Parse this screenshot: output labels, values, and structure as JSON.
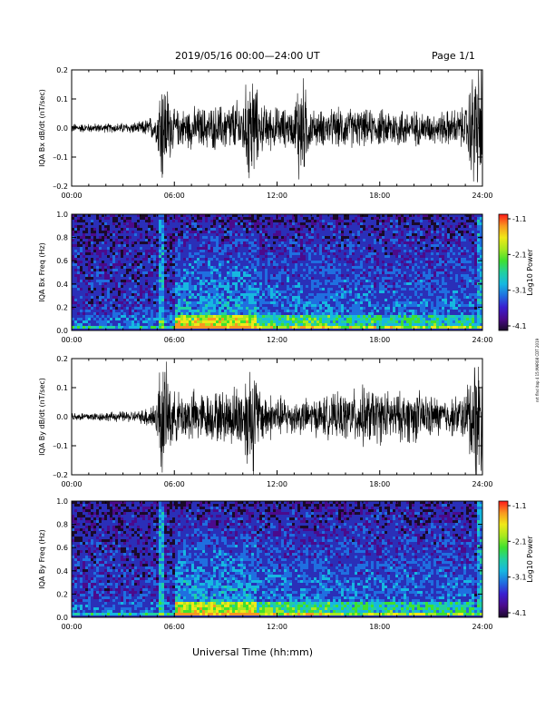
{
  "header": {
    "title": "2019/05/16  00:00—24:00 UT",
    "page": "Page 1/1"
  },
  "xlabel": "Universal Time (hh:mm)",
  "side_note": "nrt flnd itop 4 15:MAR08 CDT 2019",
  "colors": {
    "waveform": "#000000",
    "spectro_bg": "#2a2fb8",
    "colorbar": [
      "#1a0a2a",
      "#4b0a8c",
      "#3a1fd0",
      "#1f6fe0",
      "#16b8e0",
      "#22d0a0",
      "#3ee030",
      "#a8e820",
      "#f0e818",
      "#f89820",
      "#ff1a1a"
    ]
  },
  "chart_data": [
    {
      "type": "line",
      "panel": "waveform-bx",
      "ylabel": "IQA Bx dB/dt (nT/sec)",
      "ylim": [
        -0.2,
        0.2
      ],
      "yticks": [
        "0.2",
        "0.1",
        "0.0",
        "–0.1",
        "–0.2"
      ],
      "xticks": [
        "00:00",
        "06:00",
        "12:00",
        "18:00",
        "24:00"
      ],
      "xlim_hours": [
        0,
        24
      ],
      "series": [
        {
          "x": [
            0,
            1,
            2,
            3,
            4,
            5,
            5.2,
            6,
            7,
            8,
            9,
            10,
            10.5,
            11,
            12,
            13,
            13.3,
            14,
            15,
            16,
            17,
            18,
            19,
            20,
            21,
            22,
            23,
            23.5,
            24
          ],
          "amplitude": [
            0.015,
            0.015,
            0.015,
            0.018,
            0.02,
            0.05,
            0.22,
            0.06,
            0.07,
            0.07,
            0.08,
            0.1,
            0.22,
            0.08,
            0.07,
            0.06,
            0.22,
            0.06,
            0.06,
            0.07,
            0.06,
            0.06,
            0.07,
            0.06,
            0.05,
            0.06,
            0.07,
            0.22,
            0.22
          ]
        }
      ]
    },
    {
      "type": "heatmap",
      "panel": "spectrogram-bx",
      "ylabel": "IQA Bx Freq (Hz)",
      "ylim": [
        0.0,
        1.0
      ],
      "yticks": [
        "1.0",
        "0.8",
        "0.6",
        "0.4",
        "0.2",
        "0.0"
      ],
      "xticks": [
        "00:00",
        "06:00",
        "12:00",
        "18:00",
        "24:00"
      ],
      "xlim_hours": [
        0,
        24
      ],
      "colorbar": {
        "label": "Log10 Power",
        "ticks": [
          "-1.1",
          "-2.1",
          "-3.1",
          "-4.1"
        ],
        "range": [
          -4.1,
          -1.1
        ]
      }
    },
    {
      "type": "line",
      "panel": "waveform-by",
      "ylabel": "IQA By dB/dt (nT/sec)",
      "ylim": [
        -0.2,
        0.2
      ],
      "yticks": [
        "0.2",
        "0.1",
        "0.0",
        "–0.1",
        "–0.2"
      ],
      "xticks": [
        "00:00",
        "06:00",
        "12:00",
        "18:00",
        "24:00"
      ],
      "xlim_hours": [
        0,
        24
      ],
      "series": [
        {
          "x": [
            0,
            1,
            2,
            3,
            4,
            5,
            5.2,
            6,
            7,
            8,
            9,
            10,
            10.5,
            11,
            12,
            13,
            14,
            15,
            16,
            17,
            18,
            19,
            20,
            21,
            22,
            23,
            23.5,
            24
          ],
          "amplitude": [
            0.015,
            0.015,
            0.015,
            0.018,
            0.02,
            0.06,
            0.22,
            0.08,
            0.09,
            0.08,
            0.09,
            0.12,
            0.22,
            0.09,
            0.07,
            0.06,
            0.06,
            0.07,
            0.08,
            0.1,
            0.09,
            0.08,
            0.09,
            0.07,
            0.06,
            0.08,
            0.22,
            0.22
          ]
        }
      ]
    },
    {
      "type": "heatmap",
      "panel": "spectrogram-by",
      "ylabel": "IQA By Freq (Hz)",
      "ylim": [
        0.0,
        1.0
      ],
      "yticks": [
        "1.0",
        "0.8",
        "0.6",
        "0.4",
        "0.2",
        "0.0"
      ],
      "xticks": [
        "00:00",
        "06:00",
        "12:00",
        "18:00",
        "24:00"
      ],
      "xlim_hours": [
        0,
        24
      ],
      "colorbar": {
        "label": "Log10 Power",
        "ticks": [
          "-1.1",
          "-2.1",
          "-3.1",
          "-4.1"
        ],
        "range": [
          -4.1,
          -1.1
        ]
      }
    }
  ]
}
